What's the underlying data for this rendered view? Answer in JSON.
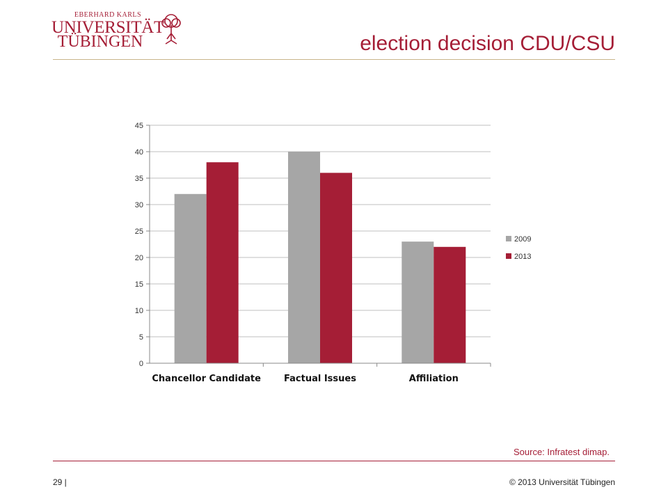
{
  "logo": {
    "line_small": "EBERHARD KARLS",
    "line1": "UNIVERSITÄT",
    "line2": "TÜBINGEN",
    "icon": "tree-icon",
    "color": "#a51e36"
  },
  "slide": {
    "title": "election decision CDU/CSU",
    "source": "Source: Infratest dimap.",
    "page_number": "29 |",
    "copyright": "© 2013 Universität Tübingen"
  },
  "chart_data": {
    "type": "bar",
    "categories": [
      "Chancellor Candidate",
      "Factual Issues",
      "Affiliation"
    ],
    "series": [
      {
        "name": "2009",
        "values": [
          32,
          40,
          23
        ],
        "color": "#a6a6a6"
      },
      {
        "name": "2013",
        "values": [
          38,
          36,
          22
        ],
        "color": "#a51e36"
      }
    ],
    "y_ticks": [
      "0",
      "5",
      "10",
      "15",
      "20",
      "25",
      "30",
      "35",
      "40",
      "45"
    ],
    "ylim": [
      0,
      45
    ],
    "grid": true,
    "legend_position": "right"
  }
}
